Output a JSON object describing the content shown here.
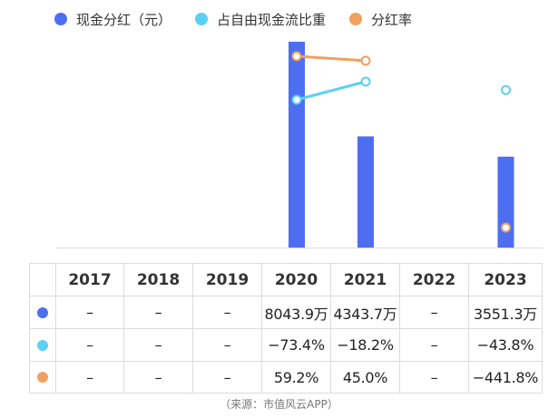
{
  "legend": {
    "dividend_label": "现金分红（元）",
    "ratio_label": "占自由现金流比重",
    "payout_label": "分红率"
  },
  "colors": {
    "dividend": "#4e6ef2",
    "ratio": "#5cd0f4",
    "payout": "#f0a060"
  },
  "chart_data": {
    "type": "bar",
    "categories": [
      "2017",
      "2018",
      "2019",
      "2020",
      "2021",
      "2022",
      "2023"
    ],
    "series": [
      {
        "name": "现金分红（元）",
        "type": "bar",
        "unit": "万",
        "values": [
          null,
          null,
          null,
          8043.9,
          4343.7,
          null,
          3551.3
        ],
        "labels": [
          "–",
          "–",
          "–",
          "8043.9万",
          "4343.7万",
          "–",
          "3551.3万"
        ]
      },
      {
        "name": "占自由现金流比重",
        "type": "line",
        "unit": "%",
        "values": [
          null,
          null,
          null,
          -73.4,
          -18.2,
          null,
          -43.8
        ],
        "labels": [
          "–",
          "–",
          "–",
          "−73.4%",
          "−18.2%",
          "–",
          "−43.8%"
        ]
      },
      {
        "name": "分红率",
        "type": "line",
        "unit": "%",
        "values": [
          null,
          null,
          null,
          59.2,
          45.0,
          null,
          -441.8
        ],
        "labels": [
          "–",
          "–",
          "–",
          "59.2%",
          "45.0%",
          "–",
          "−441.8%"
        ]
      }
    ],
    "grid": false,
    "legend_position": "top-left"
  },
  "source": "（来源：市值风云APP）"
}
